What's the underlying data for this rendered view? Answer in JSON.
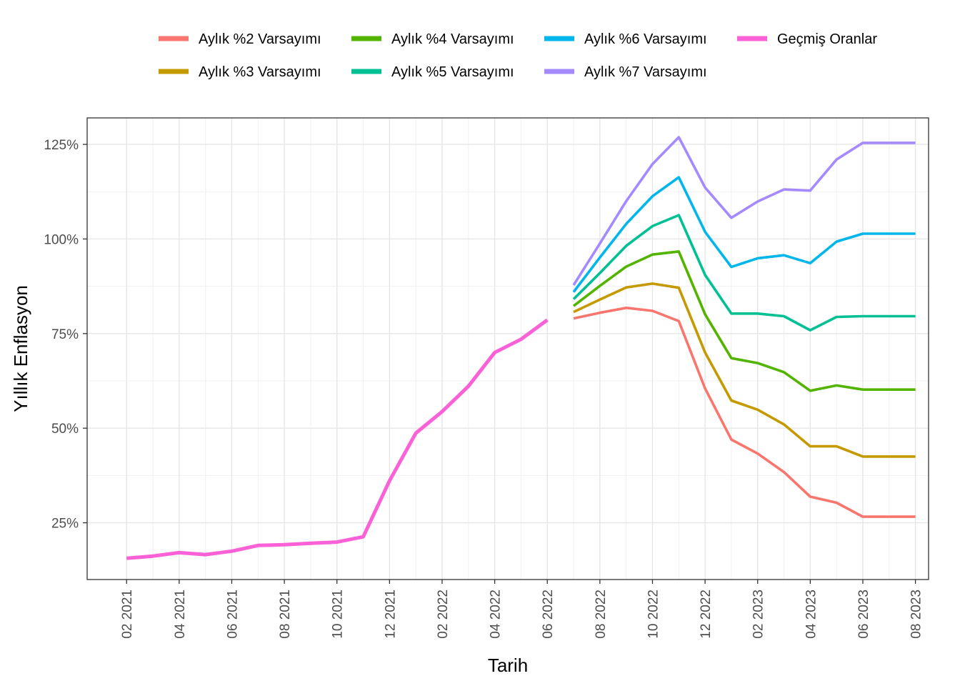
{
  "chart_data": {
    "type": "line",
    "xlabel": "Tarih",
    "ylabel": "Yıllık Enflasyon",
    "x_ticks": [
      "02 2021",
      "04 2021",
      "06 2021",
      "08 2021",
      "10 2021",
      "12 2021",
      "02 2022",
      "04 2022",
      "06 2022",
      "08 2022",
      "10 2022",
      "12 2022",
      "02 2023",
      "04 2023",
      "06 2023",
      "08 2023"
    ],
    "y_ticks": [
      {
        "value": 25,
        "label": "25%"
      },
      {
        "value": 50,
        "label": "50%"
      },
      {
        "value": 75,
        "label": "75%"
      },
      {
        "value": 100,
        "label": "100%"
      },
      {
        "value": 125,
        "label": "125%"
      }
    ],
    "xlim": [
      "2020-12-16",
      "2023-08-16"
    ],
    "ylim": [
      10,
      132
    ],
    "grid": true,
    "legend_position": "top",
    "series": [
      {
        "name": "Aylık %2 Varsayımı",
        "color": "#F8766D",
        "x": [
          "2022-07",
          "2022-08",
          "2022-09",
          "2022-10",
          "2022-11",
          "2022-12",
          "2023-01",
          "2023-02",
          "2023-03",
          "2023-04",
          "2023-05",
          "2023-06",
          "2023-07",
          "2023-08"
        ],
        "values": [
          79.0,
          80.5,
          81.8,
          81.0,
          78.3,
          60.5,
          47.0,
          43.3,
          38.4,
          31.9,
          30.3,
          26.6,
          26.6,
          26.6
        ]
      },
      {
        "name": "Aylık %3 Varsayımı",
        "color": "#C49A00",
        "x": [
          "2022-07",
          "2022-08",
          "2022-09",
          "2022-10",
          "2022-11",
          "2022-12",
          "2023-01",
          "2023-02",
          "2023-03",
          "2023-04",
          "2023-05",
          "2023-06",
          "2023-07",
          "2023-08"
        ],
        "values": [
          80.7,
          84.0,
          87.2,
          88.2,
          87.1,
          70.0,
          57.3,
          54.9,
          51.0,
          45.2,
          45.2,
          42.5,
          42.5,
          42.5
        ]
      },
      {
        "name": "Aylık %4 Varsayımı",
        "color": "#53B400",
        "x": [
          "2022-07",
          "2022-08",
          "2022-09",
          "2022-10",
          "2022-11",
          "2022-12",
          "2023-01",
          "2023-02",
          "2023-03",
          "2023-04",
          "2023-05",
          "2023-06",
          "2023-07",
          "2023-08"
        ],
        "values": [
          82.3,
          87.6,
          92.7,
          95.9,
          96.7,
          80.1,
          68.5,
          67.2,
          64.8,
          59.9,
          61.3,
          60.2,
          60.2,
          60.2
        ]
      },
      {
        "name": "Aylık %5 Varsayımı",
        "color": "#00C094",
        "x": [
          "2022-07",
          "2022-08",
          "2022-09",
          "2022-10",
          "2022-11",
          "2022-12",
          "2023-01",
          "2023-02",
          "2023-03",
          "2023-04",
          "2023-05",
          "2023-06",
          "2023-07",
          "2023-08"
        ],
        "values": [
          84.1,
          91.0,
          98.2,
          103.4,
          106.3,
          90.5,
          80.3,
          80.3,
          79.6,
          75.9,
          79.4,
          79.6,
          79.6,
          79.6
        ]
      },
      {
        "name": "Aylık %6 Varsayımı",
        "color": "#00B6EB",
        "x": [
          "2022-07",
          "2022-08",
          "2022-09",
          "2022-10",
          "2022-11",
          "2022-12",
          "2023-01",
          "2023-02",
          "2023-03",
          "2023-04",
          "2023-05",
          "2023-06",
          "2023-07",
          "2023-08"
        ],
        "values": [
          86.0,
          95.1,
          104.0,
          111.3,
          116.3,
          101.9,
          92.6,
          94.9,
          95.7,
          93.6,
          99.3,
          101.4,
          101.4,
          101.4
        ]
      },
      {
        "name": "Aylık %7 Varsayımı",
        "color": "#A58AFF",
        "x": [
          "2022-07",
          "2022-08",
          "2022-09",
          "2022-10",
          "2022-11",
          "2022-12",
          "2023-01",
          "2023-02",
          "2023-03",
          "2023-04",
          "2023-05",
          "2023-06",
          "2023-07",
          "2023-08"
        ],
        "values": [
          87.8,
          98.8,
          110.0,
          119.8,
          126.9,
          113.6,
          105.6,
          109.9,
          113.1,
          112.8,
          121.0,
          125.4,
          125.4,
          125.4
        ]
      },
      {
        "name": "Geçmiş Oranlar",
        "color": "#FB61D7",
        "x": [
          "2021-02",
          "2021-03",
          "2021-04",
          "2021-05",
          "2021-06",
          "2021-07",
          "2021-08",
          "2021-09",
          "2021-10",
          "2021-11",
          "2021-12",
          "2022-01",
          "2022-02",
          "2022-03",
          "2022-04",
          "2022-05",
          "2022-06"
        ],
        "values": [
          15.6,
          16.2,
          17.1,
          16.6,
          17.5,
          19.0,
          19.2,
          19.6,
          19.9,
          21.3,
          36.1,
          48.7,
          54.4,
          61.1,
          70.0,
          73.5,
          78.6
        ]
      }
    ]
  },
  "legend_order": [
    "Aylık %2 Varsayımı",
    "Aylık %3 Varsayımı",
    "Aylık %4 Varsayımı",
    "Aylık %5 Varsayımı",
    "Aylık %6 Varsayımı",
    "Aylık %7 Varsayımı",
    "Geçmiş Oranlar"
  ]
}
